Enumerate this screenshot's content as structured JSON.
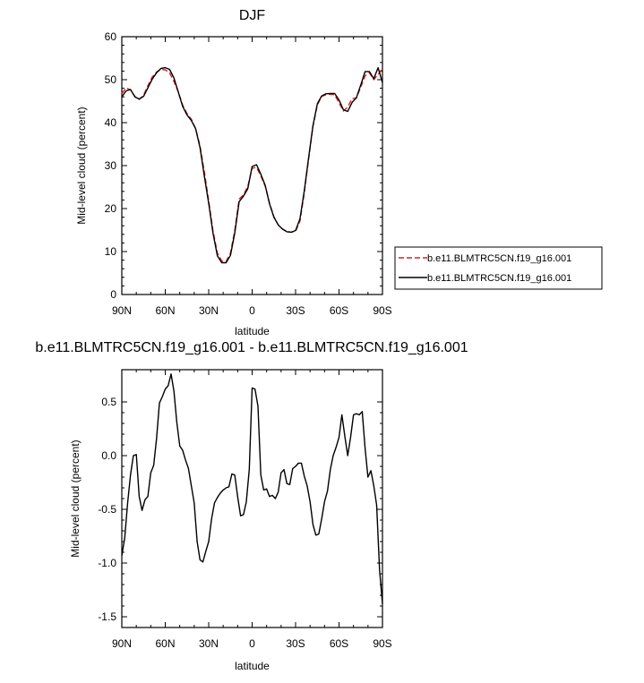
{
  "chart_data": [
    {
      "type": "line",
      "title": "DJF",
      "xlabel": "latitude",
      "ylabel": "Mid-level cloud (percent)",
      "xlim": [
        90,
        -90
      ],
      "ylim": [
        0,
        60
      ],
      "x_ticks": [
        90,
        60,
        30,
        0,
        -30,
        -60,
        -90
      ],
      "x_tick_labels": [
        "90N",
        "60N",
        "30N",
        "0",
        "30S",
        "60S",
        "90S"
      ],
      "y_ticks": [
        0,
        10,
        20,
        30,
        40,
        50,
        60
      ],
      "y_tick_labels": [
        "0",
        "10",
        "20",
        "30",
        "40",
        "50",
        "60"
      ],
      "legend": {
        "placement": "right",
        "entries": [
          {
            "label": "b.e11.BLMTRC5CN.f19_g16.001",
            "style": "dashed",
            "color": "#e31a1c"
          },
          {
            "label": "b.e11.BLMTRC5CN.f19_g16.001",
            "style": "solid",
            "color": "#000000"
          }
        ]
      },
      "series": [
        {
          "name": "b.e11.BLMTRC5CN.f19_g16.001",
          "color": "#e31a1c",
          "dash": true,
          "x": [
            90,
            87,
            84,
            81,
            78,
            75,
            72,
            69,
            66,
            63,
            60,
            57,
            54,
            51,
            48,
            45,
            42,
            39,
            36,
            33,
            30,
            27,
            24,
            21,
            18,
            15,
            12,
            9,
            6,
            3,
            0,
            -3,
            -6,
            -9,
            -12,
            -15,
            -18,
            -21,
            -24,
            -27,
            -30,
            -33,
            -36,
            -39,
            -42,
            -45,
            -48,
            -51,
            -54,
            -57,
            -60,
            -63,
            -66,
            -69,
            -72,
            -75,
            -78,
            -81,
            -84,
            -87,
            -90
          ],
          "y": [
            46.8,
            48.1,
            47.6,
            46.1,
            45.4,
            46.4,
            48.6,
            50.6,
            51.8,
            52.4,
            52.3,
            51.6,
            49.6,
            47.1,
            44.1,
            42.1,
            40.8,
            38.6,
            34.6,
            28.6,
            21.8,
            14.8,
            9.6,
            7.8,
            7.7,
            9.6,
            14.9,
            22.2,
            23.2,
            25.1,
            29.4,
            29.6,
            27.6,
            25.2,
            21.3,
            18.1,
            16.2,
            15.2,
            14.7,
            14.5,
            14.7,
            17.1,
            23.6,
            31.6,
            39.1,
            44.1,
            46.1,
            46.5,
            46.6,
            46.5,
            44.6,
            42.7,
            43.6,
            45.6,
            45.7,
            48.3,
            50.9,
            51.6,
            50.0,
            51.2,
            52.5
          ]
        },
        {
          "name": "b.e11.BLMTRC5CN.f19_g16.001",
          "color": "#000000",
          "dash": false,
          "x": [
            90,
            87,
            84,
            81,
            78,
            75,
            72,
            69,
            66,
            63,
            60,
            57,
            54,
            51,
            48,
            45,
            42,
            39,
            36,
            33,
            30,
            27,
            24,
            21,
            18,
            15,
            12,
            9,
            6,
            3,
            0,
            -3,
            -6,
            -9,
            -12,
            -15,
            -18,
            -21,
            -24,
            -27,
            -30,
            -33,
            -36,
            -39,
            -42,
            -45,
            -48,
            -51,
            -54,
            -57,
            -60,
            -63,
            -66,
            -69,
            -72,
            -75,
            -78,
            -81,
            -84,
            -87,
            -90
          ],
          "y": [
            46.0,
            47.4,
            47.7,
            46.0,
            45.5,
            46.1,
            48.1,
            50.1,
            51.6,
            52.6,
            52.8,
            52.4,
            50.4,
            47.1,
            43.8,
            41.8,
            40.5,
            38.6,
            34.2,
            27.6,
            21.2,
            14.3,
            9.0,
            7.4,
            7.4,
            9.1,
            14.3,
            21.6,
            22.9,
            24.6,
            29.8,
            30.2,
            28.0,
            25.4,
            21.1,
            18.0,
            16.2,
            15.2,
            14.6,
            14.5,
            14.9,
            17.6,
            24.1,
            31.9,
            39.3,
            44.4,
            46.2,
            46.7,
            46.8,
            46.8,
            45.3,
            43.0,
            42.6,
            44.7,
            45.8,
            48.8,
            51.9,
            51.9,
            50.2,
            52.8,
            49.3
          ]
        }
      ]
    },
    {
      "type": "line",
      "title": "b.e11.BLMTRC5CN.f19_g16.001 - b.e11.BLMTRC5CN.f19_g16.001",
      "xlabel": "latitude",
      "ylabel": "Mid-level cloud (percent)",
      "xlim": [
        90,
        -90
      ],
      "ylim": [
        -1.6,
        0.8
      ],
      "x_ticks": [
        90,
        60,
        30,
        0,
        -30,
        -60,
        -90
      ],
      "x_tick_labels": [
        "90N",
        "60N",
        "30N",
        "0",
        "30S",
        "60S",
        "90S"
      ],
      "y_ticks": [
        0.5,
        0.0,
        -0.5,
        -1.0,
        -1.5
      ],
      "y_tick_labels": [
        "0.5",
        "0.0",
        "-0.5",
        "-1.0",
        "-1.5"
      ],
      "series": [
        {
          "color": "#000000",
          "dash": false,
          "x": [
            90,
            88,
            86,
            84,
            82,
            80,
            78,
            76,
            74,
            72,
            70,
            68,
            66,
            64,
            62,
            60,
            58,
            56,
            54,
            52,
            50,
            48,
            46,
            44,
            42,
            40,
            38,
            36,
            34,
            32,
            30,
            28,
            26,
            24,
            22,
            20,
            18,
            16,
            14,
            12,
            10,
            8,
            6,
            4,
            2,
            0,
            -2,
            -4,
            -6,
            -8,
            -10,
            -12,
            -14,
            -16,
            -18,
            -20,
            -22,
            -24,
            -26,
            -28,
            -30,
            -32,
            -34,
            -36,
            -38,
            -40,
            -42,
            -44,
            -46,
            -48,
            -50,
            -52,
            -54,
            -56,
            -58,
            -60,
            -62,
            -64,
            -66,
            -68,
            -70,
            -72,
            -74,
            -76,
            -78,
            -80,
            -82,
            -84,
            -86,
            -88,
            -90
          ],
          "y": [
            -0.93,
            -0.77,
            -0.44,
            -0.18,
            0.0,
            0.01,
            -0.38,
            -0.51,
            -0.41,
            -0.38,
            -0.16,
            -0.09,
            0.16,
            0.49,
            0.55,
            0.62,
            0.65,
            0.76,
            0.6,
            0.31,
            0.09,
            0.05,
            -0.04,
            -0.12,
            -0.28,
            -0.44,
            -0.8,
            -0.97,
            -0.99,
            -0.89,
            -0.8,
            -0.59,
            -0.44,
            -0.39,
            -0.35,
            -0.32,
            -0.3,
            -0.29,
            -0.17,
            -0.18,
            -0.38,
            -0.56,
            -0.55,
            -0.43,
            -0.13,
            0.63,
            0.62,
            0.46,
            -0.18,
            -0.32,
            -0.31,
            -0.38,
            -0.37,
            -0.4,
            -0.34,
            -0.16,
            -0.13,
            -0.26,
            -0.27,
            -0.12,
            -0.1,
            -0.07,
            -0.07,
            -0.19,
            -0.28,
            -0.43,
            -0.64,
            -0.74,
            -0.73,
            -0.59,
            -0.43,
            -0.33,
            -0.13,
            0.0,
            0.08,
            0.17,
            0.38,
            0.18,
            0.0,
            0.17,
            0.38,
            0.39,
            0.38,
            0.41,
            0.07,
            -0.2,
            -0.14,
            -0.28,
            -0.46,
            -1.07,
            -1.38
          ]
        }
      ]
    }
  ]
}
